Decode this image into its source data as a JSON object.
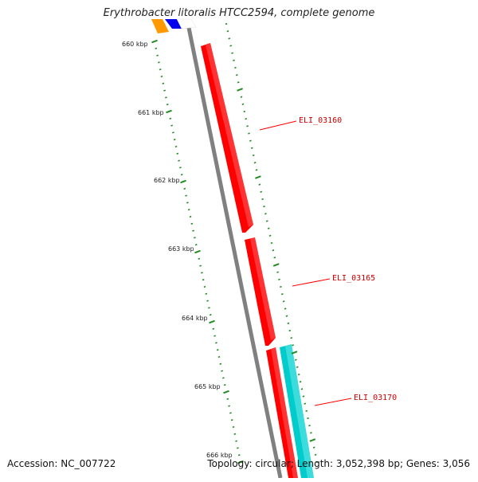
{
  "title": "Erythrobacter litoralis HTCC2594, complete genome",
  "footer": {
    "accession": "Accession: NC_007722",
    "stats": "Topology: circular; Length: 3,052,398 bp; Genes: 3,056"
  },
  "colors": {
    "backbone": "#808080",
    "forward_gene": "#ff0000",
    "reverse_gene": "#00cccc",
    "ticks": "#228b22",
    "gene_label": "#cc0000",
    "upstream_orange": "#ff9900",
    "upstream_blue": "#0000ee"
  },
  "ticks": [
    {
      "label": "660 kbp"
    },
    {
      "label": "661 kbp"
    },
    {
      "label": "662 kbp"
    },
    {
      "label": "663 kbp"
    },
    {
      "label": "664 kbp"
    },
    {
      "label": "665 kbp"
    },
    {
      "label": "666 kbp"
    }
  ],
  "genes": [
    {
      "id": "ELI_03160",
      "strand": "forward"
    },
    {
      "id": "ELI_03165",
      "strand": "forward"
    },
    {
      "id": "ELI_03170",
      "strand": "reverse"
    }
  ]
}
